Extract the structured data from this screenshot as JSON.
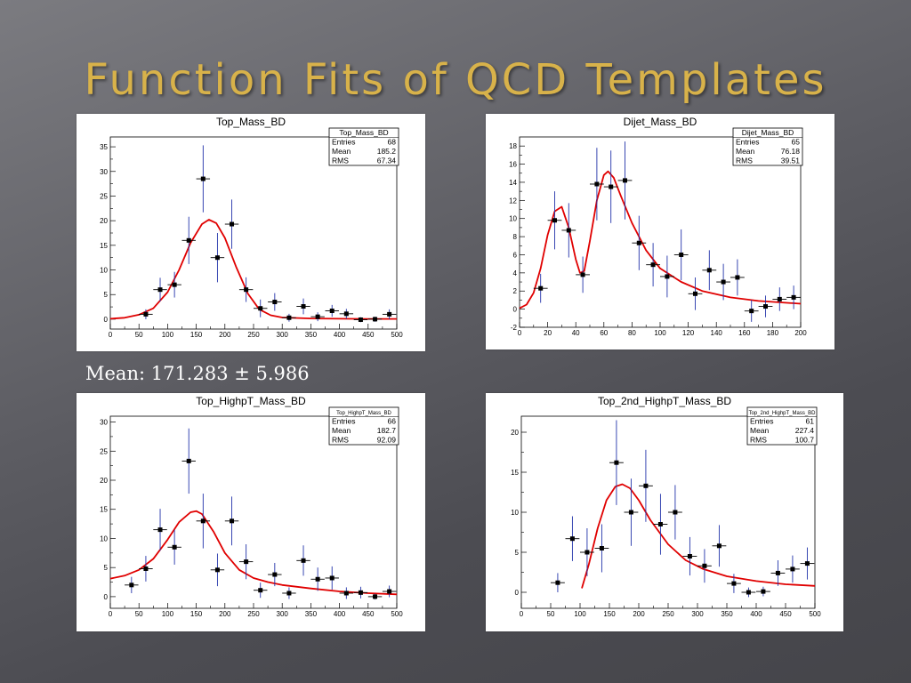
{
  "slide": {
    "title": "Function Fits of QCD Templates",
    "mean_text": "Mean: 171.283 ± 5.986"
  },
  "colors": {
    "fit": "#e00000",
    "points": "#000000",
    "error_bars": "#2233aa",
    "title": "#d8b24a"
  },
  "chart_data": [
    {
      "id": "top_mass",
      "type": "scatter",
      "title": "Top_Mass_BD",
      "xlabel": "",
      "ylabel": "",
      "xlim": [
        0,
        500
      ],
      "ylim": [
        -2,
        37
      ],
      "xticks": [
        0,
        50,
        100,
        150,
        200,
        250,
        300,
        350,
        400,
        450,
        500
      ],
      "yticks": [
        0,
        5,
        10,
        15,
        20,
        25,
        30,
        35
      ],
      "stats": {
        "name": "Top_Mass_BD",
        "rows": [
          [
            "Entries",
            "68"
          ],
          [
            "Mean",
            "185.2"
          ],
          [
            "RMS",
            "67.34"
          ]
        ]
      },
      "points": [
        {
          "x": 62,
          "y": 1,
          "err": 1,
          "xerr": 12
        },
        {
          "x": 87,
          "y": 6,
          "err": 2.4,
          "xerr": 12
        },
        {
          "x": 112,
          "y": 7,
          "err": 2.6,
          "xerr": 12
        },
        {
          "x": 137,
          "y": 16,
          "err": 4.8,
          "xerr": 12
        },
        {
          "x": 162,
          "y": 28.5,
          "err": 6.8,
          "xerr": 12
        },
        {
          "x": 187,
          "y": 12.5,
          "err": 5,
          "xerr": 12
        },
        {
          "x": 212,
          "y": 19.3,
          "err": 5,
          "xerr": 12
        },
        {
          "x": 237,
          "y": 6,
          "err": 2.5,
          "xerr": 12
        },
        {
          "x": 262,
          "y": 2.2,
          "err": 1.8,
          "xerr": 12
        },
        {
          "x": 287,
          "y": 3.5,
          "err": 1.8,
          "xerr": 12
        },
        {
          "x": 312,
          "y": 0.3,
          "err": 0.8,
          "xerr": 12
        },
        {
          "x": 337,
          "y": 2.6,
          "err": 1.6,
          "xerr": 12
        },
        {
          "x": 362,
          "y": 0.5,
          "err": 0.9,
          "xerr": 12
        },
        {
          "x": 387,
          "y": 1.7,
          "err": 1.2,
          "xerr": 12
        },
        {
          "x": 412,
          "y": 1.1,
          "err": 1.0,
          "xerr": 12
        },
        {
          "x": 437,
          "y": -0.1,
          "err": 0.5,
          "xerr": 12
        },
        {
          "x": 462,
          "y": 0,
          "err": 0.5,
          "xerr": 12
        },
        {
          "x": 487,
          "y": 1,
          "err": 1.0,
          "xerr": 12
        }
      ],
      "fit": {
        "x": [
          0,
          25,
          50,
          75,
          100,
          120,
          140,
          160,
          172,
          185,
          200,
          220,
          240,
          260,
          280,
          300,
          350,
          400,
          450,
          500
        ],
        "y": [
          0.1,
          0.3,
          0.9,
          2.2,
          5.5,
          10,
          15.5,
          19.3,
          20.2,
          19.5,
          16.5,
          10.5,
          5.2,
          2.0,
          0.8,
          0.35,
          0.15,
          0.1,
          0.05,
          0.05
        ]
      }
    },
    {
      "id": "dijet_mass",
      "type": "scatter",
      "title": "Dijet_Mass_BD",
      "xlabel": "",
      "ylabel": "",
      "xlim": [
        0,
        200
      ],
      "ylim": [
        -2,
        19
      ],
      "xticks": [
        0,
        20,
        40,
        60,
        80,
        100,
        120,
        140,
        160,
        180,
        200
      ],
      "yticks": [
        -2,
        0,
        2,
        4,
        6,
        8,
        10,
        12,
        14,
        16,
        18
      ],
      "stats": {
        "name": "Dijet_Mass_BD",
        "rows": [
          [
            "Entries",
            "65"
          ],
          [
            "Mean",
            "76.18"
          ],
          [
            "RMS",
            "39.51"
          ]
        ]
      },
      "points": [
        {
          "x": 15,
          "y": 2.3,
          "err": 1.6,
          "xerr": 5
        },
        {
          "x": 25,
          "y": 9.8,
          "err": 3.2,
          "xerr": 5
        },
        {
          "x": 35,
          "y": 8.7,
          "err": 3,
          "xerr": 5
        },
        {
          "x": 45,
          "y": 3.8,
          "err": 2,
          "xerr": 5
        },
        {
          "x": 55,
          "y": 13.8,
          "err": 4,
          "xerr": 5
        },
        {
          "x": 65,
          "y": 13.5,
          "err": 4,
          "xerr": 5
        },
        {
          "x": 75,
          "y": 14.2,
          "err": 4.3,
          "xerr": 5
        },
        {
          "x": 85,
          "y": 7.3,
          "err": 3,
          "xerr": 5
        },
        {
          "x": 95,
          "y": 4.9,
          "err": 2.4,
          "xerr": 5
        },
        {
          "x": 105,
          "y": 3.6,
          "err": 2.3,
          "xerr": 5
        },
        {
          "x": 115,
          "y": 6,
          "err": 2.8,
          "xerr": 5
        },
        {
          "x": 125,
          "y": 1.7,
          "err": 1.8,
          "xerr": 5
        },
        {
          "x": 135,
          "y": 4.3,
          "err": 2.2,
          "xerr": 5
        },
        {
          "x": 145,
          "y": 3,
          "err": 2,
          "xerr": 5
        },
        {
          "x": 155,
          "y": 3.5,
          "err": 2,
          "xerr": 5
        },
        {
          "x": 165,
          "y": -0.2,
          "err": 1.2,
          "xerr": 5
        },
        {
          "x": 175,
          "y": 0.3,
          "err": 1.2,
          "xerr": 5
        },
        {
          "x": 185,
          "y": 1.1,
          "err": 1.3,
          "xerr": 5
        },
        {
          "x": 195,
          "y": 1.3,
          "err": 1.3,
          "xerr": 5
        }
      ],
      "fit": {
        "x": [
          0,
          5,
          10,
          15,
          20,
          25,
          30,
          35,
          40,
          43,
          46,
          50,
          55,
          60,
          63,
          67,
          72,
          80,
          90,
          100,
          115,
          130,
          150,
          170,
          200
        ],
        "y": [
          0.1,
          0.5,
          1.8,
          4.5,
          8.2,
          10.8,
          11.3,
          9.0,
          5.5,
          4.0,
          4.2,
          7.5,
          12.0,
          14.8,
          15.2,
          14.5,
          12.5,
          9.5,
          6.5,
          4.5,
          3.0,
          2.0,
          1.3,
          0.9,
          0.6
        ]
      }
    },
    {
      "id": "top_highpt_mass",
      "type": "scatter",
      "title": "Top_HighpT_Mass_BD",
      "xlabel": "",
      "ylabel": "",
      "xlim": [
        0,
        500
      ],
      "ylim": [
        -2,
        31
      ],
      "xticks": [
        0,
        50,
        100,
        150,
        200,
        250,
        300,
        350,
        400,
        450,
        500
      ],
      "yticks": [
        0,
        5,
        10,
        15,
        20,
        25,
        30
      ],
      "stats": {
        "name": "Top_HighpT_Mass_BD",
        "rows": [
          [
            "Entries",
            "66"
          ],
          [
            "Mean",
            "182.7"
          ],
          [
            "RMS",
            "92.09"
          ]
        ]
      },
      "points": [
        {
          "x": 37,
          "y": 2,
          "err": 1.4,
          "xerr": 12
        },
        {
          "x": 62,
          "y": 4.8,
          "err": 2.2,
          "xerr": 12
        },
        {
          "x": 87,
          "y": 11.5,
          "err": 3.6,
          "xerr": 12
        },
        {
          "x": 112,
          "y": 8.5,
          "err": 3,
          "xerr": 12
        },
        {
          "x": 137,
          "y": 23.3,
          "err": 5.6,
          "xerr": 12
        },
        {
          "x": 162,
          "y": 13,
          "err": 4.7,
          "xerr": 12
        },
        {
          "x": 187,
          "y": 4.6,
          "err": 2.8,
          "xerr": 12
        },
        {
          "x": 212,
          "y": 13,
          "err": 4.2,
          "xerr": 12
        },
        {
          "x": 237,
          "y": 6,
          "err": 3,
          "xerr": 12
        },
        {
          "x": 262,
          "y": 1.1,
          "err": 1.3,
          "xerr": 12
        },
        {
          "x": 287,
          "y": 3.8,
          "err": 2,
          "xerr": 12
        },
        {
          "x": 312,
          "y": 0.6,
          "err": 1,
          "xerr": 12
        },
        {
          "x": 337,
          "y": 6.2,
          "err": 2.6,
          "xerr": 12
        },
        {
          "x": 362,
          "y": 3,
          "err": 2,
          "xerr": 12
        },
        {
          "x": 387,
          "y": 3.2,
          "err": 2,
          "xerr": 12
        },
        {
          "x": 412,
          "y": 0.6,
          "err": 1,
          "xerr": 12
        },
        {
          "x": 437,
          "y": 0.7,
          "err": 1,
          "xerr": 12
        },
        {
          "x": 462,
          "y": 0,
          "err": 0.5,
          "xerr": 12
        },
        {
          "x": 487,
          "y": 0.9,
          "err": 1,
          "xerr": 12
        }
      ],
      "fit": {
        "x": [
          0,
          25,
          50,
          75,
          100,
          120,
          140,
          150,
          160,
          180,
          200,
          225,
          250,
          275,
          300,
          350,
          400,
          450,
          500
        ],
        "y": [
          3.1,
          3.6,
          4.6,
          6.5,
          9.8,
          12.8,
          14.5,
          14.7,
          14.2,
          11.2,
          7.5,
          4.6,
          3.2,
          2.5,
          2.0,
          1.4,
          0.9,
          0.6,
          0.4
        ]
      }
    },
    {
      "id": "top_2nd_highpt_mass",
      "type": "scatter",
      "title": "Top_2nd_HighpT_Mass_BD",
      "xlabel": "",
      "ylabel": "",
      "xlim": [
        0,
        500
      ],
      "ylim": [
        -2,
        22
      ],
      "xticks": [
        0,
        50,
        100,
        150,
        200,
        250,
        300,
        350,
        400,
        450,
        500
      ],
      "yticks": [
        0,
        5,
        10,
        15,
        20
      ],
      "stats": {
        "name": "Top_2nd_HighpT_Mass_BD",
        "rows": [
          [
            "Entries",
            "61"
          ],
          [
            "Mean",
            "227.4"
          ],
          [
            "RMS",
            "100.7"
          ]
        ]
      },
      "points": [
        {
          "x": 62,
          "y": 1.2,
          "err": 1.2,
          "xerr": 12
        },
        {
          "x": 87,
          "y": 6.7,
          "err": 2.8,
          "xerr": 12
        },
        {
          "x": 112,
          "y": 5,
          "err": 3,
          "xerr": 12
        },
        {
          "x": 137,
          "y": 5.5,
          "err": 3,
          "xerr": 12
        },
        {
          "x": 162,
          "y": 16.2,
          "err": 5.3,
          "xerr": 12
        },
        {
          "x": 187,
          "y": 10,
          "err": 4.2,
          "xerr": 12
        },
        {
          "x": 212,
          "y": 13.3,
          "err": 4.5,
          "xerr": 12
        },
        {
          "x": 237,
          "y": 8.5,
          "err": 3.8,
          "xerr": 12
        },
        {
          "x": 262,
          "y": 10,
          "err": 3.4,
          "xerr": 12
        },
        {
          "x": 287,
          "y": 4.5,
          "err": 2.4,
          "xerr": 12
        },
        {
          "x": 312,
          "y": 3.3,
          "err": 2.1,
          "xerr": 12
        },
        {
          "x": 337,
          "y": 5.8,
          "err": 2.6,
          "xerr": 12
        },
        {
          "x": 362,
          "y": 1.1,
          "err": 1.2,
          "xerr": 12
        },
        {
          "x": 387,
          "y": 0,
          "err": 0.6,
          "xerr": 12
        },
        {
          "x": 412,
          "y": 0.1,
          "err": 0.6,
          "xerr": 12
        },
        {
          "x": 437,
          "y": 2.4,
          "err": 1.6,
          "xerr": 12
        },
        {
          "x": 462,
          "y": 2.9,
          "err": 1.7,
          "xerr": 12
        },
        {
          "x": 487,
          "y": 3.6,
          "err": 2,
          "xerr": 12
        }
      ],
      "fit": {
        "x": [
          103,
          115,
          130,
          145,
          160,
          172,
          185,
          200,
          220,
          250,
          280,
          310,
          350,
          400,
          450,
          500
        ],
        "y": [
          0.5,
          3.5,
          8.0,
          11.5,
          13.2,
          13.5,
          13.0,
          11.5,
          9.0,
          6.0,
          4.0,
          2.9,
          2.0,
          1.4,
          1.0,
          0.8
        ]
      }
    }
  ]
}
